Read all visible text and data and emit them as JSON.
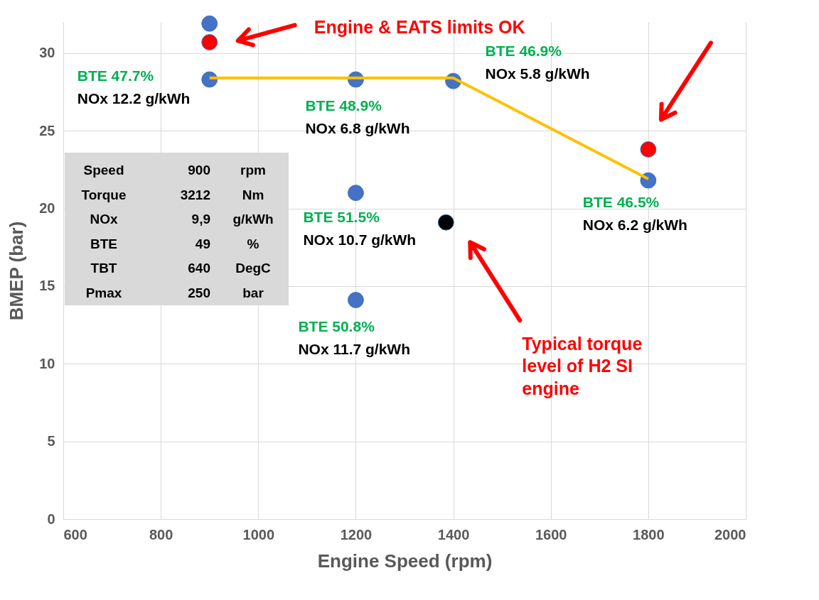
{
  "chart_data": {
    "type": "scatter",
    "xlabel": "Engine Speed (rpm)",
    "ylabel": "BMEP (bar)",
    "xlim": [
      600,
      2000
    ],
    "xticks": [
      600,
      800,
      1000,
      1200,
      1400,
      1600,
      1800,
      2000
    ],
    "ylim": [
      0,
      32
    ],
    "yticks": [
      0,
      5,
      10,
      15,
      20,
      25,
      30
    ],
    "grid": true,
    "marker": "circle",
    "series": [
      {
        "color": "#4472c4",
        "x": [
          900,
          900,
          1200,
          1200,
          1200,
          1400,
          1800
        ],
        "values": [
          31.9,
          28.3,
          28.3,
          21.0,
          14.1,
          28.2,
          21.8
        ]
      },
      {
        "color": "#ff0000",
        "x": [
          900,
          1800
        ],
        "values": [
          30.7,
          23.8
        ]
      },
      {
        "color": "#000000",
        "x": [
          1385
        ],
        "values": [
          19.1
        ]
      },
      {
        "type": "line",
        "marker": "none",
        "color": "#ffc000",
        "x": [
          900,
          1400,
          1800
        ],
        "values": [
          28.4,
          28.4,
          21.9
        ]
      }
    ],
    "annotations": [
      {
        "text": "BTE 47.7%\nNOx 12.2 g/kWh",
        "x": 900,
        "y": 28.3
      },
      {
        "text": "BTE 48.9%\nNOx 6.8 g/kWh",
        "x": 1200,
        "y": 28.3
      },
      {
        "text": "BTE 46.9%\nNOx 5.8 g/kWh",
        "x": 1400,
        "y": 28.2
      },
      {
        "text": "BTE 46.5%\nNOx 6.2 g/kWh",
        "x": 1800,
        "y": 21.8
      },
      {
        "text": "BTE 51.5%\nNOx 10.7 g/kWh",
        "x": 1200,
        "y": 21.0
      },
      {
        "text": "BTE 50.8%\nNOx 11.7 g/kWh",
        "x": 1200,
        "y": 14.1
      },
      "Engine & EATS limits OK",
      "Typical torque\nlevel of H2 SI\nengine",
      "Speed 900 rpm",
      "Torque 3212 Nm",
      "NOx 9,9 g/kWh",
      "BTE 49 %",
      "TBT 640 DegC",
      "Pmax 250 bar"
    ]
  }
}
